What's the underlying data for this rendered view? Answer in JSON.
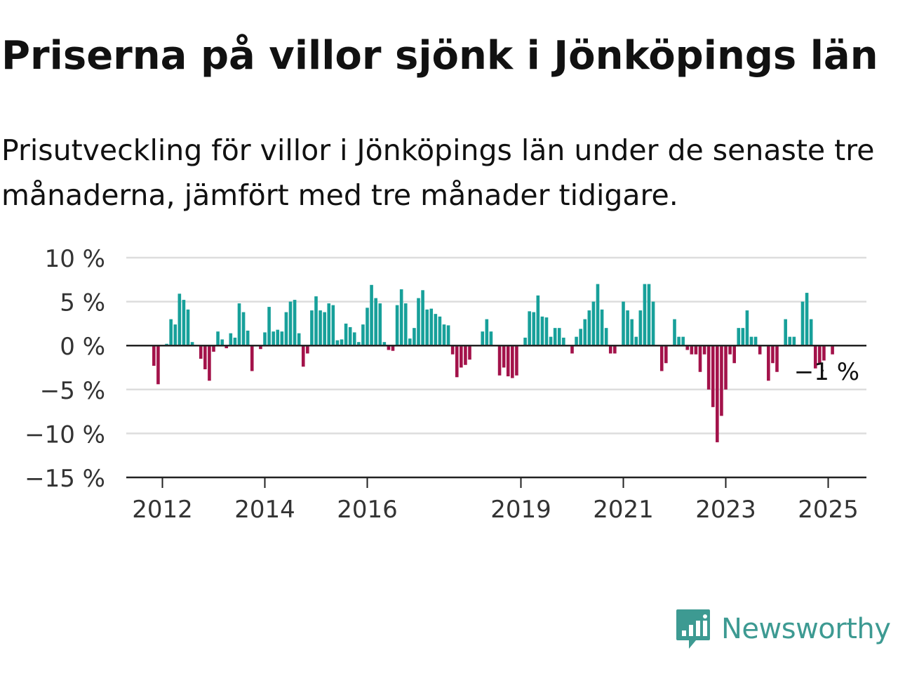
{
  "title": "Priserna på villor sjönk i Jönköpings län",
  "subtitle": "Prisutveckling för villor i Jönköpings län under de senaste tre månaderna, jämfört med tre månader tidigare.",
  "brand": {
    "name": "Newsworthy",
    "logo_icon": "bar-chart-speech-bubble-icon",
    "color": "#3d9a92"
  },
  "colors": {
    "positive": "#17a09a",
    "negative": "#a3124a",
    "grid": "#dddddd",
    "axis": "#222222",
    "text": "#333333"
  },
  "chart_data": {
    "type": "bar",
    "ylim": [
      -15,
      10
    ],
    "y_ticks": [
      10,
      5,
      0,
      -5,
      -10,
      -15
    ],
    "y_tick_labels": [
      "10 %",
      "5 %",
      "0 %",
      "−5 %",
      "−10 %",
      "−15 %"
    ],
    "x_ticks": [
      {
        "label": "2012",
        "year": 2012
      },
      {
        "label": "2014",
        "year": 2014
      },
      {
        "label": "2016",
        "year": 2016
      },
      {
        "label": "2019",
        "year": 2019
      },
      {
        "label": "2021",
        "year": 2021
      },
      {
        "label": "2023",
        "year": 2023
      },
      {
        "label": "2025",
        "year": 2025
      }
    ],
    "grid": true,
    "start": "2011-10",
    "annotation": {
      "text": "−1 %",
      "target": "last"
    },
    "values": [
      0,
      -2.3,
      -4.4,
      0,
      0.2,
      3,
      2.4,
      5.9,
      5.2,
      4.1,
      0.4,
      0,
      -1.5,
      -2.7,
      -4,
      -0.7,
      1.6,
      0.7,
      -0.3,
      1.4,
      0.9,
      4.8,
      3.8,
      1.7,
      -2.9,
      0,
      -0.4,
      1.5,
      4.4,
      1.6,
      1.8,
      1.6,
      3.8,
      5,
      5.2,
      1.4,
      -2.4,
      -0.9,
      4,
      5.6,
      4,
      3.8,
      4.8,
      4.6,
      0.6,
      0.7,
      2.5,
      2.1,
      1.5,
      0.4,
      2.4,
      4.3,
      6.9,
      5.4,
      4.8,
      0.4,
      -0.5,
      -0.6,
      4.6,
      6.4,
      4.8,
      0.8,
      2,
      5.4,
      6.3,
      4.1,
      4.2,
      3.6,
      3.3,
      2.4,
      2.3,
      -1,
      -3.6,
      -2.5,
      -2.2,
      -1.6,
      0,
      0,
      1.6,
      3,
      1.6,
      0,
      -3.4,
      -2.5,
      -3.5,
      -3.7,
      -3.4,
      0,
      0.9,
      3.9,
      3.8,
      5.7,
      3.3,
      3.2,
      1,
      2,
      2,
      0.9,
      0,
      -0.9,
      1,
      1.9,
      3,
      4,
      5,
      7,
      4.1,
      2,
      -0.9,
      -0.9,
      0,
      5,
      4,
      3,
      1,
      4,
      7,
      7,
      5,
      0,
      -2.9,
      -2,
      0,
      3,
      1,
      1,
      -0.5,
      -1,
      -1,
      -3,
      -1,
      -5,
      -7,
      -11,
      -8,
      -5,
      -1,
      -2,
      2,
      2,
      4,
      1,
      1,
      -1,
      0,
      -4,
      -2,
      -3,
      0,
      3,
      1,
      1,
      0,
      5,
      6,
      3,
      -2.6,
      -2.1,
      -1.7,
      0,
      -1
    ]
  }
}
